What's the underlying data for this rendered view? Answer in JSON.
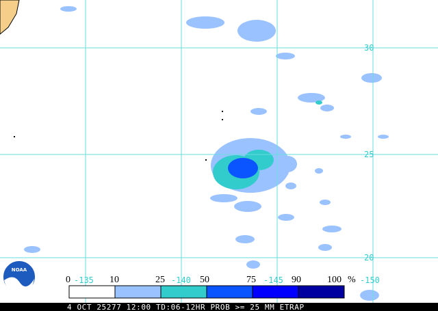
{
  "map": {
    "latitude_labels": [
      "30",
      "25",
      "20"
    ],
    "longitude_labels": [
      "-135",
      "-140",
      "-145",
      "-150"
    ],
    "legend": {
      "labels": [
        "0",
        "10",
        "25",
        "50",
        "75",
        "90",
        "100"
      ],
      "unit": "%"
    },
    "logo": "NOAA",
    "footer": "4 OCT 25277 12:00 TD:06-12HR PROB >= 25 MM ETRAP"
  }
}
